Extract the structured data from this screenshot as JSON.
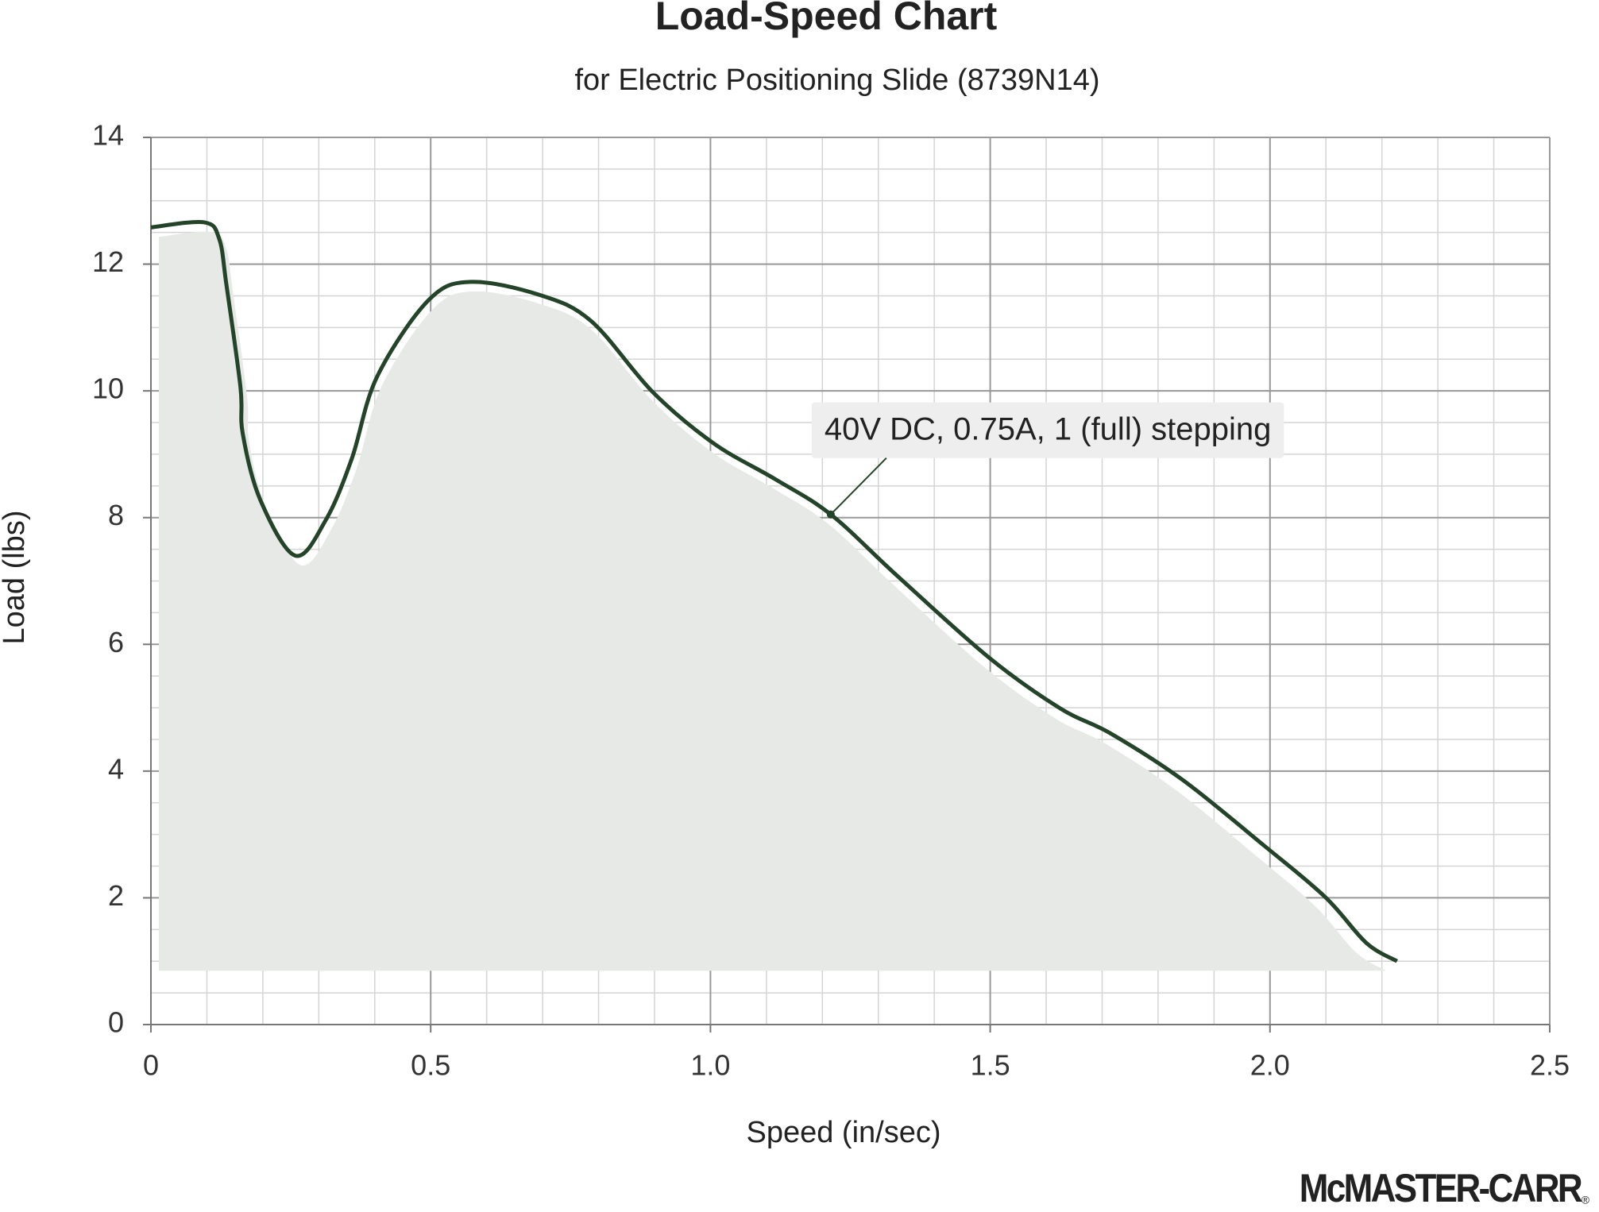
{
  "chart_data": {
    "type": "line",
    "title": "Load-Speed Chart",
    "subtitle": "for Electric Positioning Slide (8739N14)",
    "x_label": "Speed (in/sec)",
    "y_label": "Load (lbs)",
    "xlim": [
      0,
      2.5
    ],
    "xticks": [
      0,
      0.5,
      {
        "value": 1,
        "label": "1.0"
      },
      1.5,
      {
        "value": 2,
        "label": "2.0"
      },
      2.5
    ],
    "ylim": [
      0,
      14
    ],
    "yticks": [
      0,
      2,
      4,
      6,
      8,
      10,
      12,
      14
    ],
    "xminor": 0.1,
    "yminor": 0.5,
    "grid": true,
    "series": [
      {
        "name": "40V DC, 0.75A, 1 (full) stepping",
        "color": "#24442a",
        "x": [
          0,
          0.095,
          0.122,
          0.135,
          0.16,
          0.164,
          0.195,
          0.258,
          0.313,
          0.359,
          0.404,
          0.496,
          0.572,
          0.696,
          0.787,
          0.897,
          1.006,
          1.115,
          1.215,
          1.334,
          1.498,
          1.625,
          1.716,
          1.844,
          1.99,
          2.099,
          2.172,
          2.227
        ],
        "values": [
          12.58,
          12.66,
          12.4,
          11.67,
          10.06,
          9.33,
          8.29,
          7.4,
          7.97,
          8.93,
          10.22,
          11.43,
          11.72,
          11.51,
          11.1,
          9.98,
          9.17,
          8.61,
          8.05,
          7.08,
          5.79,
          4.99,
          4.59,
          3.86,
          2.82,
          2.01,
          1.29,
          1.0
        ]
      }
    ],
    "annotation": {
      "text": "40V DC, 0.75A, 1 (full) stepping",
      "x": 1.215,
      "y": 8.05
    },
    "logo": "McMASTER-CARR",
    "logo_mark": "®"
  }
}
